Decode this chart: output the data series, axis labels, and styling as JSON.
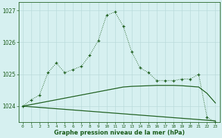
{
  "hours": [
    0,
    1,
    2,
    3,
    4,
    5,
    6,
    7,
    8,
    9,
    10,
    11,
    12,
    13,
    14,
    15,
    16,
    17,
    18,
    19,
    20,
    21,
    22,
    23
  ],
  "line_dotted": [
    1024.0,
    1024.2,
    1024.35,
    1025.05,
    1025.35,
    1025.05,
    1025.15,
    1025.25,
    1025.6,
    1026.05,
    1026.85,
    1026.95,
    1026.5,
    1025.7,
    1025.2,
    1025.05,
    1024.8,
    1024.8,
    1024.8,
    1024.85,
    1024.85,
    1025.0,
    1023.65,
    1023.5
  ],
  "line_rising": [
    1024.0,
    1024.05,
    1024.1,
    1024.15,
    1024.2,
    1024.25,
    1024.3,
    1024.35,
    1024.4,
    1024.45,
    1024.5,
    1024.55,
    1024.6,
    1024.62,
    1024.63,
    1024.64,
    1024.65,
    1024.65,
    1024.65,
    1024.64,
    1024.62,
    1024.6,
    1024.4,
    1024.1
  ],
  "line_declining": [
    1024.0,
    1023.98,
    1023.96,
    1023.94,
    1023.92,
    1023.9,
    1023.88,
    1023.86,
    1023.84,
    1023.82,
    1023.8,
    1023.78,
    1023.76,
    1023.74,
    1023.72,
    1023.7,
    1023.68,
    1023.66,
    1023.64,
    1023.62,
    1023.6,
    1023.58,
    1023.56,
    1023.54
  ],
  "line_color": "#1a5c1a",
  "bg_color": "#d6f0f0",
  "grid_color": "#b8dada",
  "xlabel": "Graphe pression niveau de la mer (hPa)",
  "ylim_min": 1023.5,
  "ylim_max": 1027.25,
  "yticks": [
    1024,
    1025,
    1026,
    1027
  ],
  "xticks": [
    0,
    1,
    2,
    3,
    4,
    5,
    6,
    7,
    8,
    9,
    10,
    11,
    12,
    13,
    14,
    15,
    16,
    17,
    18,
    19,
    20,
    21,
    22,
    23
  ],
  "figwidth": 3.2,
  "figheight": 2.0,
  "dpi": 100
}
